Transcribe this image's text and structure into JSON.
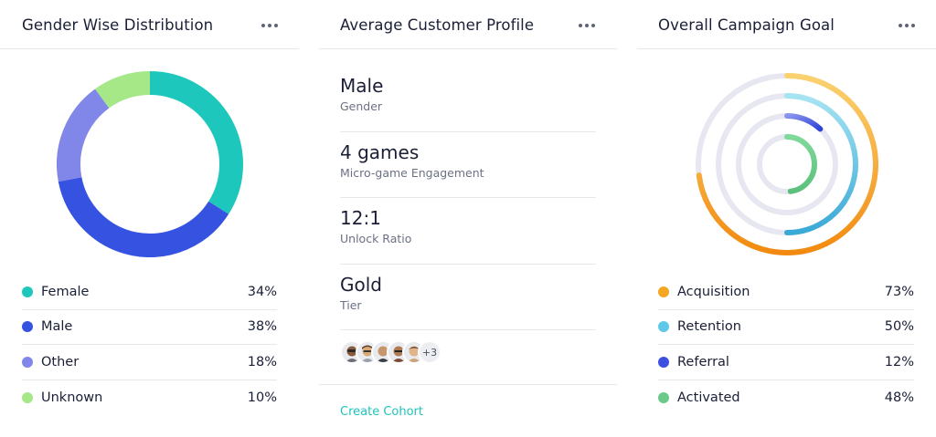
{
  "gender_card": {
    "title": "Gender Wise Distribution",
    "legend": [
      {
        "label": "Female",
        "value": "34%",
        "color": "#1ec7bc"
      },
      {
        "label": "Male",
        "value": "38%",
        "color": "#3552e0"
      },
      {
        "label": "Other",
        "value": "18%",
        "color": "#8087e8"
      },
      {
        "label": "Unknown",
        "value": "10%",
        "color": "#a6e888"
      }
    ]
  },
  "profile_card": {
    "title": "Average Customer Profile",
    "items": [
      {
        "value": "Male",
        "label": "Gender"
      },
      {
        "value": "4 games",
        "label": "Micro-game Engagement"
      },
      {
        "value": "12:1",
        "label": "Unlock Ratio"
      },
      {
        "value": "Gold",
        "label": "Tier"
      }
    ],
    "avatars_more": "+3",
    "create_link": "Create Cohort"
  },
  "campaign_card": {
    "title": "Overall Campaign Goal",
    "legend": [
      {
        "label": "Acquisition",
        "value": "73%",
        "color": "#f5a623"
      },
      {
        "label": "Retention",
        "value": "50%",
        "color": "#5dc8e8"
      },
      {
        "label": "Referral",
        "value": "12%",
        "color": "#3d4fe0"
      },
      {
        "label": "Activated",
        "value": "48%",
        "color": "#6bc98a"
      }
    ]
  },
  "chart_data": [
    {
      "type": "pie",
      "categories": [
        "Female",
        "Male",
        "Other",
        "Unknown"
      ],
      "values": [
        34,
        38,
        18,
        10
      ]
    },
    {
      "type": "radial-bar",
      "categories": [
        "Acquisition",
        "Retention",
        "Referral",
        "Activated"
      ],
      "values": [
        73,
        50,
        12,
        48
      ]
    }
  ]
}
